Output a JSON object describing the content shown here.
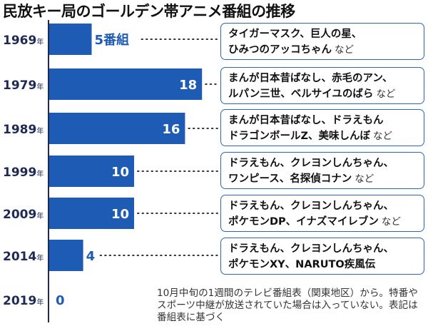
{
  "title": "民放キー局のゴールデン帯アニメ番組の推移",
  "colors": {
    "bar": "#1e5bb4",
    "border": "#2b66b8",
    "axis": "#1e2a55"
  },
  "chart_data": {
    "type": "bar",
    "orientation": "horizontal",
    "title": "民放キー局のゴールデン帯アニメ番組の推移",
    "year_suffix": "年",
    "categories": [
      "1969",
      "1979",
      "1989",
      "1999",
      "2009",
      "2014",
      "2019"
    ],
    "values": [
      5,
      18,
      16,
      10,
      10,
      4,
      0
    ],
    "value_labels": [
      "5番組",
      "18",
      "16",
      "10",
      "10",
      "4",
      "0"
    ],
    "xlim": [
      0,
      20
    ]
  },
  "callouts": [
    {
      "line1": "タイガーマスク、巨人の星、",
      "line2": "ひみつのアッコちゃん",
      "suffix": "など"
    },
    {
      "line1": "まんが日本昔ばなし、赤毛のアン、",
      "line2": "ルパン三世、ベルサイユのばら",
      "suffix": "など"
    },
    {
      "line1": "まんが日本昔ばなし、ドラえもん",
      "line2": "ドラゴンボールZ、美味しんぼ",
      "suffix": "など"
    },
    {
      "line1": "ドラえもん、クレヨンしんちゃん、",
      "line2": "ワンピース、名探偵コナン",
      "suffix": "など"
    },
    {
      "line1": "ドラえもん、クレヨンしんちゃん、",
      "line2": "ポケモンDP、イナズマイレブン",
      "suffix": "など"
    },
    {
      "line1": "ドラえもん、クレヨンしんちゃん、",
      "line2": "ポケモンXY、NARUTO疾風伝",
      "suffix": ""
    }
  ],
  "note": "10月中旬の1週間のテレビ番組表（関東地区）から。特番やスポーツ中継が放送されていた場合は入っていない。表記は番組表に基づく"
}
